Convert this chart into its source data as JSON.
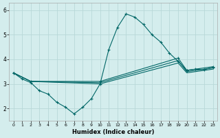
{
  "xlabel": "Humidex (Indice chaleur)",
  "bg_color": "#d4eded",
  "grid_color": "#b8d8d8",
  "line_color": "#006666",
  "xlim": [
    -0.5,
    23.5
  ],
  "ylim": [
    1.5,
    6.3
  ],
  "xticks": [
    0,
    1,
    2,
    3,
    4,
    5,
    6,
    7,
    8,
    9,
    10,
    11,
    12,
    13,
    14,
    15,
    16,
    17,
    18,
    19,
    20,
    21,
    22,
    23
  ],
  "yticks": [
    2,
    3,
    4,
    5,
    6
  ],
  "line1_x": [
    0,
    1,
    2,
    3,
    4,
    5,
    6,
    7,
    8,
    9,
    10,
    11,
    12,
    13,
    14,
    15,
    16,
    17,
    18,
    19,
    20,
    21,
    22,
    23
  ],
  "line1_y": [
    3.45,
    3.2,
    3.05,
    2.72,
    2.58,
    2.25,
    2.05,
    1.78,
    2.05,
    2.4,
    3.0,
    4.4,
    5.3,
    5.85,
    5.72,
    5.42,
    5.0,
    4.7,
    4.25,
    3.92,
    3.55,
    3.6,
    3.58,
    3.67
  ],
  "line2_x": [
    0,
    2,
    10,
    19,
    20,
    23
  ],
  "line2_y": [
    3.45,
    3.1,
    3.1,
    4.05,
    3.55,
    3.7
  ],
  "line3_x": [
    0,
    2,
    10,
    19,
    20,
    23
  ],
  "line3_y": [
    3.45,
    3.1,
    3.05,
    3.95,
    3.5,
    3.65
  ],
  "line4_x": [
    0,
    2,
    10,
    19,
    20,
    23
  ],
  "line4_y": [
    3.45,
    3.1,
    3.0,
    3.85,
    3.45,
    3.6
  ]
}
